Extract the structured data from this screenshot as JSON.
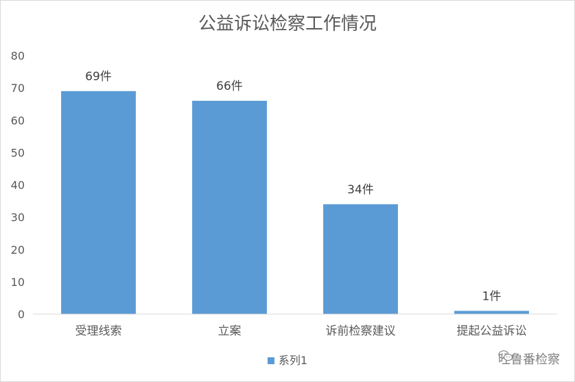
{
  "chart_data": {
    "type": "bar",
    "title": "公益诉讼检察工作情况",
    "categories": [
      "受理线索",
      "立案",
      "诉前检察建议",
      "提起公益诉讼"
    ],
    "series": [
      {
        "name": "系列1",
        "values": [
          69,
          66,
          34,
          1
        ],
        "labels": [
          "69件",
          "66件",
          "34件",
          "1件"
        ],
        "color": "#5b9bd5"
      }
    ],
    "ylim": [
      0,
      80
    ],
    "yticks": [
      0,
      10,
      20,
      30,
      40,
      50,
      60,
      70,
      80
    ],
    "grid": false,
    "legend": "bottom"
  },
  "watermark": {
    "text": "吐鲁番检察",
    "icon": "wechat-icon"
  }
}
